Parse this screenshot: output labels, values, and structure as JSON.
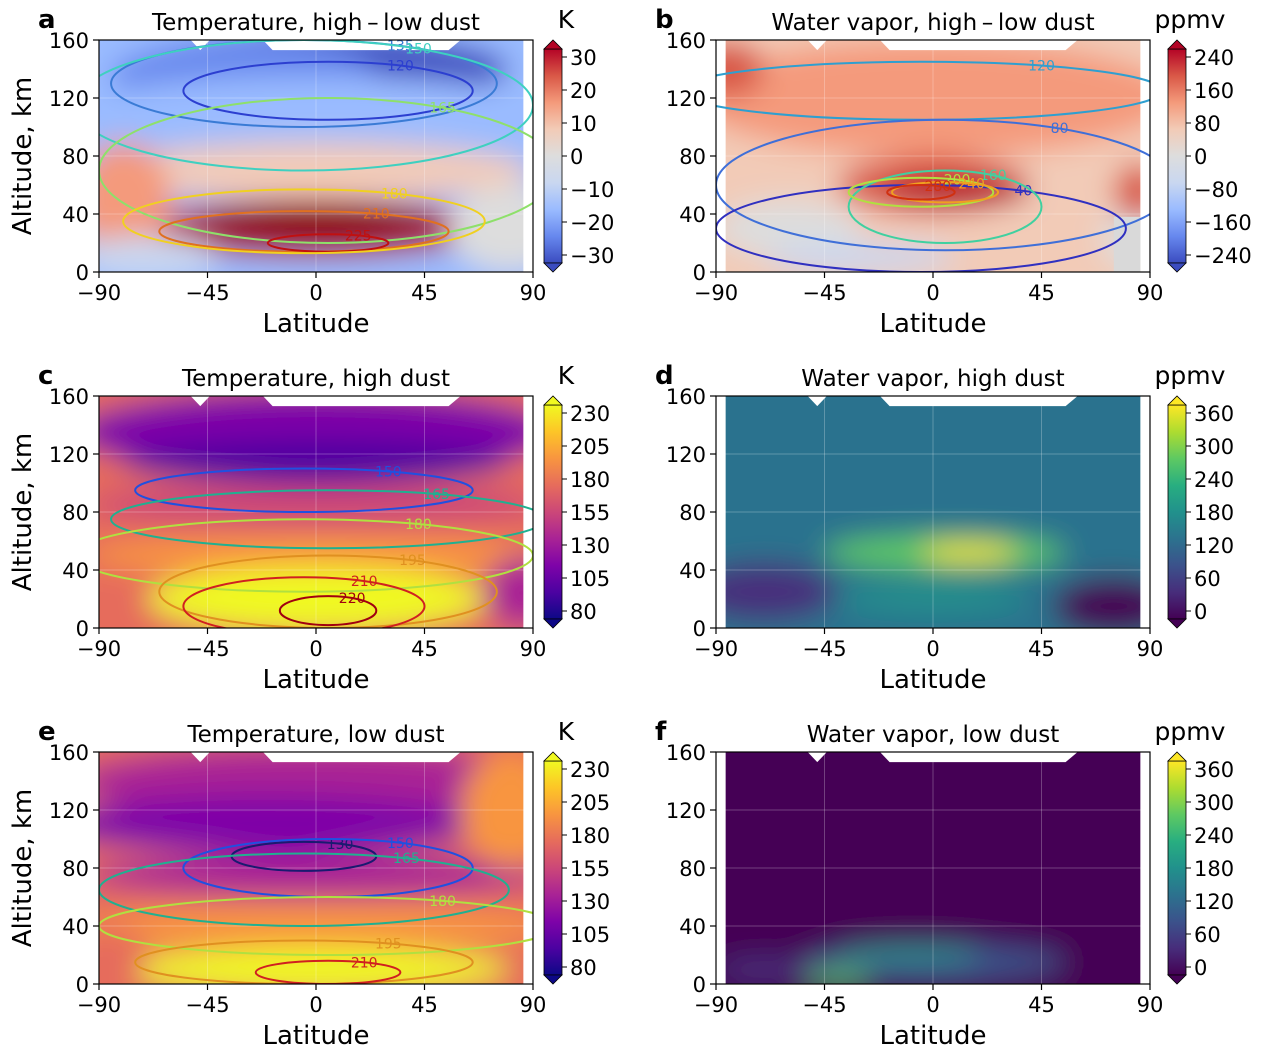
{
  "chart_data": [
    {
      "panel": "a",
      "type": "heatmap",
      "title": "Temperature, high – low dust",
      "xlabel": "Latitude",
      "ylabel": "Altitude, km",
      "xlim": [
        -90,
        90
      ],
      "ylim": [
        0,
        160
      ],
      "xticks": [
        "−90",
        "−45",
        "0",
        "45",
        "90"
      ],
      "yticks": [
        "0",
        "40",
        "80",
        "120",
        "160"
      ],
      "colorbar": {
        "unit": "K",
        "ticks": [
          "30",
          "20",
          "10",
          "0",
          "−10",
          "−20",
          "−30"
        ],
        "range": [
          -30,
          30
        ],
        "colormap": "coolwarm"
      },
      "field_description": "difference field: negative above ~90 km, positive maximum (~+30 K) near equator 20-50 km",
      "contours": [
        {
          "value": "135",
          "color": "#3a7bd5"
        },
        {
          "value": "120",
          "color": "#2c3fd0"
        },
        {
          "value": "150",
          "color": "#3fd0c0"
        },
        {
          "value": "165",
          "color": "#8ee06a"
        },
        {
          "value": "210",
          "color": "#e07020"
        },
        {
          "value": "225",
          "color": "#c01010"
        },
        {
          "value": "180",
          "color": "#f0d020"
        }
      ]
    },
    {
      "panel": "b",
      "type": "heatmap",
      "title": "Water vapor, high – low dust",
      "xlabel": "Latitude",
      "ylabel": "",
      "xlim": [
        -90,
        90
      ],
      "ylim": [
        0,
        160
      ],
      "xticks": [
        "−90",
        "−45",
        "0",
        "45",
        "90"
      ],
      "yticks": [
        "0",
        "40",
        "80",
        "120",
        "160"
      ],
      "colorbar": {
        "unit": "ppmv",
        "ticks": [
          "240",
          "160",
          "80",
          "0",
          "−80",
          "−160",
          "−240"
        ],
        "range": [
          -240,
          240
        ],
        "colormap": "coolwarm"
      },
      "field_description": "positive (~+80 to +160 ppmv) almost everywhere, maximum ~+240 ppmv near equator 50-60 km",
      "contours": [
        {
          "value": "120",
          "color": "#2f9fd0"
        },
        {
          "value": "80",
          "color": "#3f6fd8"
        },
        {
          "value": "40",
          "color": "#3030c0"
        },
        {
          "value": "160",
          "color": "#40d0a0"
        },
        {
          "value": "200",
          "color": "#b0e040"
        },
        {
          "value": "240",
          "color": "#f0a020"
        },
        {
          "value": "280",
          "color": "#d03010"
        }
      ]
    },
    {
      "panel": "c",
      "type": "heatmap",
      "title": "Temperature, high dust",
      "xlabel": "Latitude",
      "ylabel": "Altitude, km",
      "xlim": [
        -90,
        90
      ],
      "ylim": [
        0,
        160
      ],
      "xticks": [
        "−90",
        "−45",
        "0",
        "45",
        "90"
      ],
      "yticks": [
        "0",
        "40",
        "80",
        "120",
        "160"
      ],
      "colorbar": {
        "unit": "K",
        "ticks": [
          "230",
          "205",
          "180",
          "155",
          "130",
          "105",
          "80"
        ],
        "range": [
          80,
          230
        ],
        "colormap": "plasma"
      },
      "field_description": "warm (~220 K) below 40 km at low latitudes, cold (~120 K) above 100 km",
      "contours": [
        {
          "value": "150",
          "color": "#2050e0"
        },
        {
          "value": "165",
          "color": "#20b090"
        },
        {
          "value": "180",
          "color": "#b0e040"
        },
        {
          "value": "195",
          "color": "#e09020"
        },
        {
          "value": "210",
          "color": "#d02020"
        },
        {
          "value": "220",
          "color": "#a00010"
        }
      ]
    },
    {
      "panel": "d",
      "type": "heatmap",
      "title": "Water vapor, high dust",
      "xlabel": "Latitude",
      "ylabel": "",
      "xlim": [
        -90,
        90
      ],
      "ylim": [
        0,
        160
      ],
      "xticks": [
        "−90",
        "−45",
        "0",
        "45",
        "90"
      ],
      "yticks": [
        "0",
        "40",
        "80",
        "120",
        "160"
      ],
      "colorbar": {
        "unit": "ppmv",
        "ticks": [
          "360",
          "300",
          "240",
          "180",
          "120",
          "60",
          "0"
        ],
        "range": [
          0,
          360
        ],
        "colormap": "viridis"
      },
      "field_description": "~120-150 ppmv broadly, maximum ~330 ppmv near equator 50-55 km, near 0 at high southern latitudes near surface"
    },
    {
      "panel": "e",
      "type": "heatmap",
      "title": "Temperature, low dust",
      "xlabel": "Latitude",
      "ylabel": "Altitude, km",
      "xlim": [
        -90,
        90
      ],
      "ylim": [
        0,
        160
      ],
      "xticks": [
        "−90",
        "−45",
        "0",
        "45",
        "90"
      ],
      "yticks": [
        "0",
        "40",
        "80",
        "120",
        "160"
      ],
      "colorbar": {
        "unit": "K",
        "ticks": [
          "230",
          "205",
          "180",
          "155",
          "130",
          "105",
          "80"
        ],
        "range": [
          80,
          230
        ],
        "colormap": "plasma"
      },
      "field_description": "warm near surface at low latitudes, cold minimum (~130 K) near 80-100 km",
      "contours": [
        {
          "value": "130",
          "color": "#1a1a70"
        },
        {
          "value": "150",
          "color": "#2050e0"
        },
        {
          "value": "165",
          "color": "#20b090"
        },
        {
          "value": "180",
          "color": "#b0e040"
        },
        {
          "value": "195",
          "color": "#e09020"
        },
        {
          "value": "210",
          "color": "#d02020"
        }
      ]
    },
    {
      "panel": "f",
      "type": "heatmap",
      "title": "Water vapor, low dust",
      "xlabel": "Latitude",
      "ylabel": "",
      "xlim": [
        -90,
        90
      ],
      "ylim": [
        0,
        160
      ],
      "xticks": [
        "−90",
        "−45",
        "0",
        "45",
        "90"
      ],
      "yticks": [
        "0",
        "40",
        "80",
        "120",
        "160"
      ],
      "colorbar": {
        "unit": "ppmv",
        "ticks": [
          "360",
          "300",
          "240",
          "180",
          "120",
          "60",
          "0"
        ],
        "range": [
          0,
          360
        ],
        "colormap": "viridis"
      },
      "field_description": "near 0 ppmv above 40 km, ~60-120 ppmv below 30 km at low latitudes"
    }
  ]
}
